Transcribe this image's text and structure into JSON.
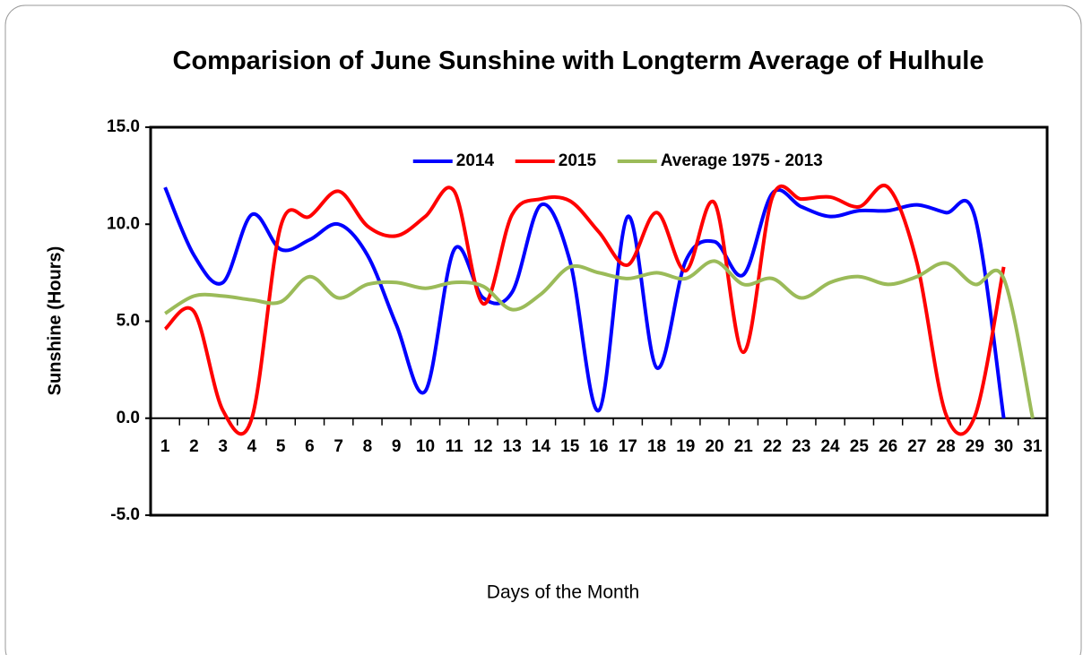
{
  "chart_data": {
    "type": "line",
    "title": "Comparision of June Sunshine with Longterm Average of Hulhule",
    "x_label": "Days of the Month",
    "y_label": "Sunshine (Hours)",
    "categories": [
      "1",
      "2",
      "3",
      "4",
      "5",
      "6",
      "7",
      "8",
      "9",
      "10",
      "11",
      "12",
      "13",
      "14",
      "15",
      "16",
      "17",
      "18",
      "19",
      "20",
      "21",
      "22",
      "23",
      "24",
      "25",
      "26",
      "27",
      "28",
      "29",
      "30",
      "31"
    ],
    "series": [
      {
        "name": "2014",
        "color": "#0000ff",
        "values": [
          11.9,
          8.4,
          7.0,
          10.5,
          8.7,
          9.2,
          10.0,
          8.4,
          4.8,
          1.4,
          8.7,
          6.2,
          6.5,
          11.0,
          8.1,
          0.4,
          10.4,
          2.6,
          8.1,
          9.1,
          7.4,
          11.6,
          10.9,
          10.4,
          10.7,
          10.7,
          11.0,
          10.6,
          10.4,
          0,
          null
        ]
      },
      {
        "name": "2015",
        "color": "#ff0000",
        "values": [
          4.6,
          5.5,
          0.4,
          0,
          9.9,
          10.4,
          11.7,
          9.9,
          9.4,
          10.4,
          11.7,
          5.9,
          10.5,
          11.3,
          11.2,
          9.6,
          7.9,
          10.6,
          7.6,
          11.1,
          3.4,
          11.4,
          11.3,
          11.4,
          10.9,
          11.9,
          8.0,
          0.2,
          0.1,
          7.8,
          null
        ]
      },
      {
        "name": "Average 1975 - 2013",
        "color": "#9bbb59",
        "values": [
          5.4,
          6.3,
          6.3,
          6.1,
          6.0,
          7.3,
          6.2,
          6.9,
          7.0,
          6.7,
          7.0,
          6.8,
          5.6,
          6.4,
          7.8,
          7.5,
          7.2,
          7.5,
          7.2,
          8.1,
          6.9,
          7.2,
          6.2,
          7.0,
          7.3,
          6.9,
          7.3,
          8.0,
          6.9,
          7.2,
          0
        ]
      }
    ],
    "ylim": [
      -5,
      15
    ],
    "yticks": [
      {
        "value": -5,
        "label": "-5.0"
      },
      {
        "value": 0,
        "label": "0.0"
      },
      {
        "value": 5,
        "label": "5.0"
      },
      {
        "value": 10,
        "label": "10.0"
      },
      {
        "value": 15,
        "label": "15.0"
      }
    ],
    "grid": false,
    "legend": "top",
    "smooth": true
  }
}
